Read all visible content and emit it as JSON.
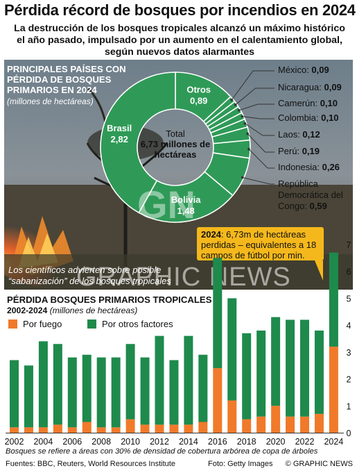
{
  "title": "Pérdida récord de bosques por incendios en 2024",
  "subtitle": "La destrucción de los bosques tropicales alcanzó un máximo histórico el año pasado, impulsado por un aumento en el calentamiento global, según nuevos datos alarmantes",
  "donut_section": {
    "heading": "PRINCIPALES PAÍSES CON PÉRDIDA DE BOSQUES PRIMARIOS EN 2024",
    "units": "(millones de hectáreas)",
    "center_label": "Total",
    "center_value": "6,73 millones de hectáreas"
  },
  "photo_caption": "Los científicos advierten sobre posible “sabanización” de los bosques tropicales",
  "callout": {
    "year": "2024",
    "text": ": 6,73m de hectáreas perdidas – equivalentes a 18 campos de fútbol por min."
  },
  "bar_section": {
    "heading": "PÉRDIDA BOSQUES PRIMARIOS TROPICALES",
    "years": "2002-2024",
    "units": "(millones de hectáreas)",
    "legend_fire": "Por fuego",
    "legend_other": "Por otros factores"
  },
  "note": "Bosques se refiere a áreas con 30% de densidad de cobertura arbórea de copa de árboles",
  "sources": "Fuentes: BBC, Reuters, World Resources Institute",
  "photo_credit": "Foto: Getty Images",
  "brand": "© GRAPHIC NEWS",
  "watermark": "GRAPHIC NEWS",
  "watermark_logo": "GN",
  "colors": {
    "green": "#1e8a4c",
    "orange": "#f07a2a",
    "callout": "#f5b81c"
  },
  "chart_data": [
    {
      "type": "pie",
      "title": "PRINCIPALES PAÍSES CON PÉRDIDA DE BOSQUES PRIMARIOS EN 2024",
      "units": "millones de hectáreas",
      "slices": [
        {
          "label": "Otros",
          "value": 0.89,
          "value_label": "0,89"
        },
        {
          "label": "México",
          "value": 0.09,
          "value_label": "0,09"
        },
        {
          "label": "Nicaragua",
          "value": 0.09,
          "value_label": "0,09"
        },
        {
          "label": "Camerún",
          "value": 0.1,
          "value_label": "0,10"
        },
        {
          "label": "Colombia",
          "value": 0.1,
          "value_label": "0,10"
        },
        {
          "label": "Laos",
          "value": 0.12,
          "value_label": "0,12"
        },
        {
          "label": "Perú",
          "value": 0.19,
          "value_label": "0,19"
        },
        {
          "label": "Indonesia",
          "value": 0.26,
          "value_label": "0,26"
        },
        {
          "label": "República Democrática del Congo",
          "value": 0.59,
          "value_label": "0,59"
        },
        {
          "label": "Bolivia",
          "value": 1.48,
          "value_label": "1,48"
        },
        {
          "label": "Brasil",
          "value": 2.82,
          "value_label": "2,82"
        }
      ],
      "total_label": "Total 6,73 millones de hectáreas"
    },
    {
      "type": "bar",
      "stacked": true,
      "title": "PÉRDIDA BOSQUES PRIMARIOS TROPICALES 2002-2024",
      "ylabel": "millones de hectáreas",
      "categories": [
        "2002",
        "2003",
        "2004",
        "2005",
        "2006",
        "2007",
        "2008",
        "2009",
        "2010",
        "2011",
        "2012",
        "2013",
        "2014",
        "2015",
        "2016",
        "2017",
        "2018",
        "2019",
        "2020",
        "2021",
        "2022",
        "2023",
        "2024"
      ],
      "x_tick_labels": [
        "2002",
        "2004",
        "2006",
        "2008",
        "2010",
        "2012",
        "2014",
        "2016",
        "2018",
        "2020",
        "2022",
        "2024"
      ],
      "series": [
        {
          "name": "Por fuego",
          "values": [
            0.2,
            0.2,
            0.2,
            0.3,
            0.2,
            0.4,
            0.2,
            0.2,
            0.5,
            0.3,
            0.3,
            0.3,
            0.3,
            0.4,
            2.4,
            1.2,
            0.5,
            0.6,
            1.0,
            0.6,
            0.6,
            0.7,
            3.2
          ]
        },
        {
          "name": "Por otros factores",
          "values": [
            2.5,
            2.3,
            3.2,
            3.0,
            2.6,
            2.5,
            2.6,
            2.6,
            2.8,
            2.5,
            3.3,
            2.4,
            3.3,
            2.5,
            4.1,
            3.8,
            3.2,
            3.2,
            3.3,
            3.6,
            3.6,
            3.1,
            3.5
          ]
        }
      ],
      "ylim": [
        0,
        7
      ],
      "y_ticks": [
        0,
        1,
        2,
        3,
        4,
        5,
        6,
        7
      ],
      "grid": false,
      "legend": "top-left"
    }
  ]
}
